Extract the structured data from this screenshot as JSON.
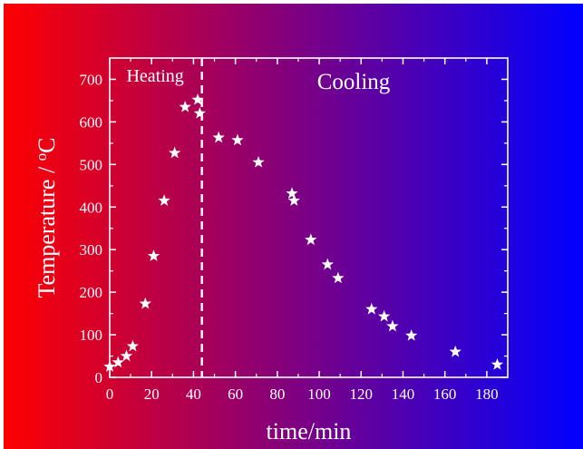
{
  "chart_data": {
    "type": "scatter",
    "title": "",
    "xlabel": "time/min",
    "ylabel": "Temperature / °C",
    "xlim": [
      0,
      190
    ],
    "ylim": [
      0,
      750
    ],
    "x_ticks": [
      0,
      20,
      40,
      60,
      80,
      100,
      120,
      140,
      160,
      180
    ],
    "y_ticks": [
      0,
      100,
      200,
      300,
      400,
      500,
      600,
      700
    ],
    "grid": false,
    "marker": "star",
    "background": "horizontal gradient from red (#ff0000) to blue (#0000ff)",
    "colors": {
      "gradient_start": "#ff0000",
      "gradient_end": "#0000ff",
      "marker": "#ffffff",
      "axes": "#ffffff"
    },
    "annotations": [
      {
        "text": "Heating",
        "region": "left of divider"
      },
      {
        "text": "Cooling",
        "region": "right of divider"
      }
    ],
    "divider_x": 44,
    "points": [
      {
        "x": 0,
        "y": 25
      },
      {
        "x": 4,
        "y": 35
      },
      {
        "x": 8,
        "y": 50
      },
      {
        "x": 11,
        "y": 73
      },
      {
        "x": 17,
        "y": 173
      },
      {
        "x": 21,
        "y": 285
      },
      {
        "x": 26,
        "y": 415
      },
      {
        "x": 31,
        "y": 527
      },
      {
        "x": 36,
        "y": 635
      },
      {
        "x": 42,
        "y": 652
      },
      {
        "x": 43,
        "y": 620
      },
      {
        "x": 52,
        "y": 563
      },
      {
        "x": 61,
        "y": 557
      },
      {
        "x": 71,
        "y": 505
      },
      {
        "x": 87,
        "y": 432
      },
      {
        "x": 88,
        "y": 415
      },
      {
        "x": 96,
        "y": 323
      },
      {
        "x": 104,
        "y": 265
      },
      {
        "x": 109,
        "y": 233
      },
      {
        "x": 125,
        "y": 160
      },
      {
        "x": 131,
        "y": 143
      },
      {
        "x": 135,
        "y": 120
      },
      {
        "x": 144,
        "y": 98
      },
      {
        "x": 165,
        "y": 60
      },
      {
        "x": 185,
        "y": 30
      }
    ]
  }
}
